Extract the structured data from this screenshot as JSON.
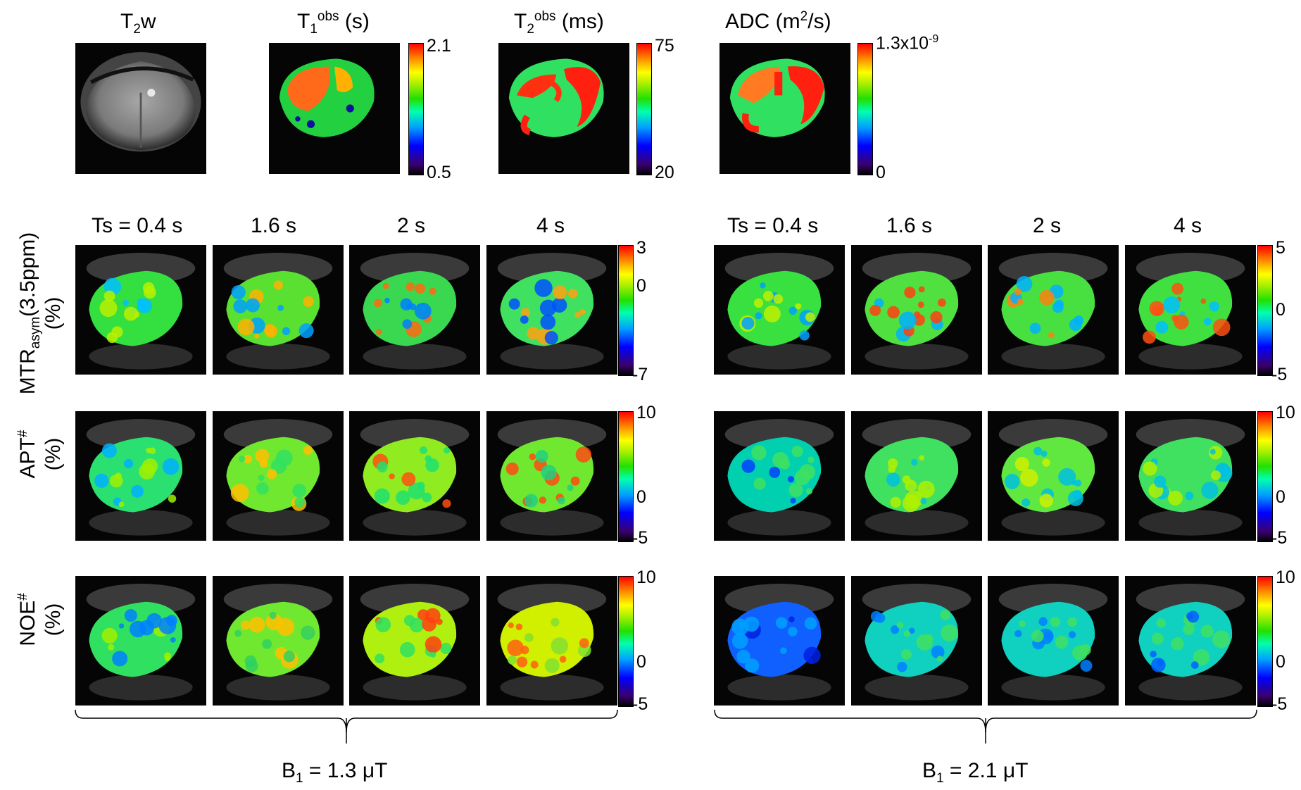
{
  "top_titles": {
    "t2w": {
      "main": "T",
      "sub": "2",
      "tail": "w"
    },
    "t1": {
      "main": "T",
      "sub": "1",
      "sup": "obs",
      "tail": " (s)"
    },
    "t2": {
      "main": "T",
      "sub": "2",
      "sup": "obs",
      "tail": " (ms)"
    },
    "adc": {
      "main": "ADC (m",
      "sup": "2",
      "tail": "/s)"
    }
  },
  "top_colorbars": {
    "t1": {
      "max": "2.1",
      "min": "0.5"
    },
    "t2": {
      "max": "75",
      "min": "20"
    },
    "adc": {
      "max": "1.3x10-9",
      "max_base": "1.3x10",
      "max_exp": "-9",
      "min": "0"
    }
  },
  "ts_labels_left": [
    "Ts = 0.4 s",
    "1.6 s",
    "2 s",
    "4 s"
  ],
  "ts_labels_right": [
    "Ts = 0.4 s",
    "1.6 s",
    "2 s",
    "4 s"
  ],
  "rows": {
    "mtr": {
      "line1_main": "MTR",
      "line1_sub": "asym",
      "line1_tail": "(3.5ppm)",
      "line2": "(%)"
    },
    "apt": {
      "line1_main": "APT",
      "line1_sup": "#",
      "line2": "(%)"
    },
    "noe": {
      "line1_main": "NOE",
      "line1_sup": "#",
      "line2": "(%)"
    }
  },
  "colorbar_ticks": {
    "mtr_left": [
      "3",
      "0",
      "-7"
    ],
    "mtr_right": [
      "5",
      "0",
      "-5"
    ],
    "apt_left": [
      "10",
      "0",
      "-5"
    ],
    "apt_right": [
      "10",
      "0",
      "-5"
    ],
    "noe_left": [
      "10",
      "0",
      "-5"
    ],
    "noe_right": [
      "10",
      "0",
      "-5"
    ]
  },
  "b1_labels": {
    "left": {
      "main": "B",
      "sub": "1",
      "tail": " = 1.3 μT"
    },
    "right": {
      "main": "B",
      "sub": "1",
      "tail": " = 2.1 μT"
    }
  },
  "colors": {
    "background": "#ffffff",
    "image_bg": "#050505"
  }
}
